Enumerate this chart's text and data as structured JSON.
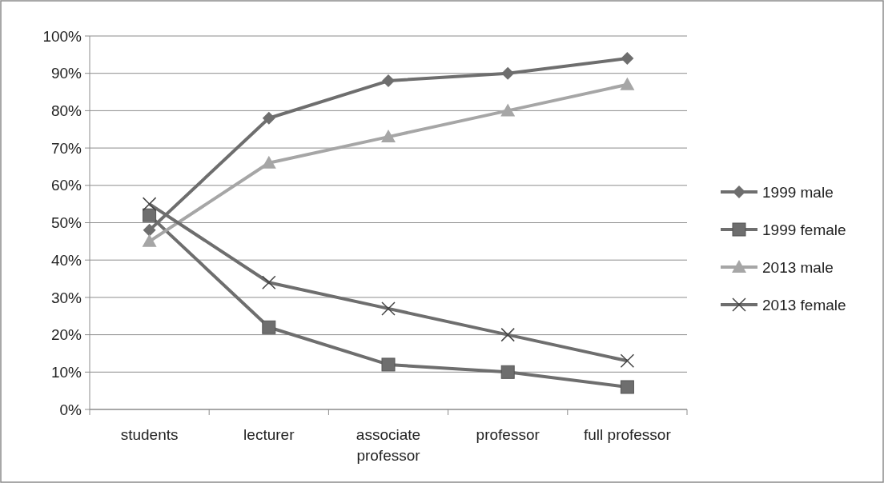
{
  "chart_data": {
    "type": "line",
    "categories": [
      "students",
      "lecturer",
      "associate professor",
      "professor",
      "full professor"
    ],
    "series": [
      {
        "name": "1999 male",
        "color": "#6e6e6e",
        "marker": "diamond",
        "values": [
          48,
          78,
          88,
          90,
          94
        ]
      },
      {
        "name": "1999 female",
        "color": "#6e6e6e",
        "marker": "square",
        "values": [
          52,
          22,
          12,
          10,
          6
        ]
      },
      {
        "name": "2013 male",
        "color": "#a6a6a6",
        "marker": "triangle",
        "values": [
          45,
          66,
          73,
          80,
          87
        ]
      },
      {
        "name": "2013 female",
        "color": "#6e6e6e",
        "marker": "cross",
        "values": [
          55,
          34,
          27,
          20,
          13
        ]
      }
    ],
    "ylim": [
      0,
      100
    ],
    "yticks": [
      {
        "value": 0,
        "label": "0%"
      },
      {
        "value": 10,
        "label": "10%"
      },
      {
        "value": 20,
        "label": "20%"
      },
      {
        "value": 30,
        "label": "30%"
      },
      {
        "value": 40,
        "label": "40%"
      },
      {
        "value": 50,
        "label": "50%"
      },
      {
        "value": 60,
        "label": "60%"
      },
      {
        "value": 70,
        "label": "70%"
      },
      {
        "value": 80,
        "label": "80%"
      },
      {
        "value": 90,
        "label": "90%"
      },
      {
        "value": 100,
        "label": "100%"
      }
    ],
    "grid": "y",
    "legend": "right"
  }
}
